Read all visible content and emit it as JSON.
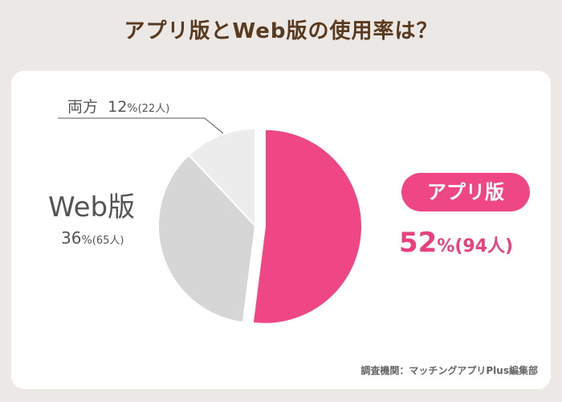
{
  "title": "アプリ版とWeb版の使用率は？",
  "chart_data": {
    "type": "pie",
    "title": "アプリ版とWeb版の使用率は？",
    "slices": [
      {
        "name": "アプリ版",
        "value": 52,
        "count": 94,
        "color": "#ef4786",
        "exploded": true
      },
      {
        "name": "Web版",
        "value": 36,
        "count": 65,
        "color": "#d6d6d6"
      },
      {
        "name": "両方",
        "value": 12,
        "count": 22,
        "color": "#ececec"
      }
    ]
  },
  "labels": {
    "both_name": "両方",
    "both_pct": "12",
    "both_pct_unit": "%",
    "both_count": "(22人)",
    "web_name": "Web版",
    "web_pct": "36",
    "web_pct_unit": "%",
    "web_count": "(65人)",
    "app_name": "アプリ版",
    "app_pct": "52",
    "app_pct_unit": "%",
    "app_count": "(94人)"
  },
  "source": "調査機関：マッチングアプリPlus編集部"
}
